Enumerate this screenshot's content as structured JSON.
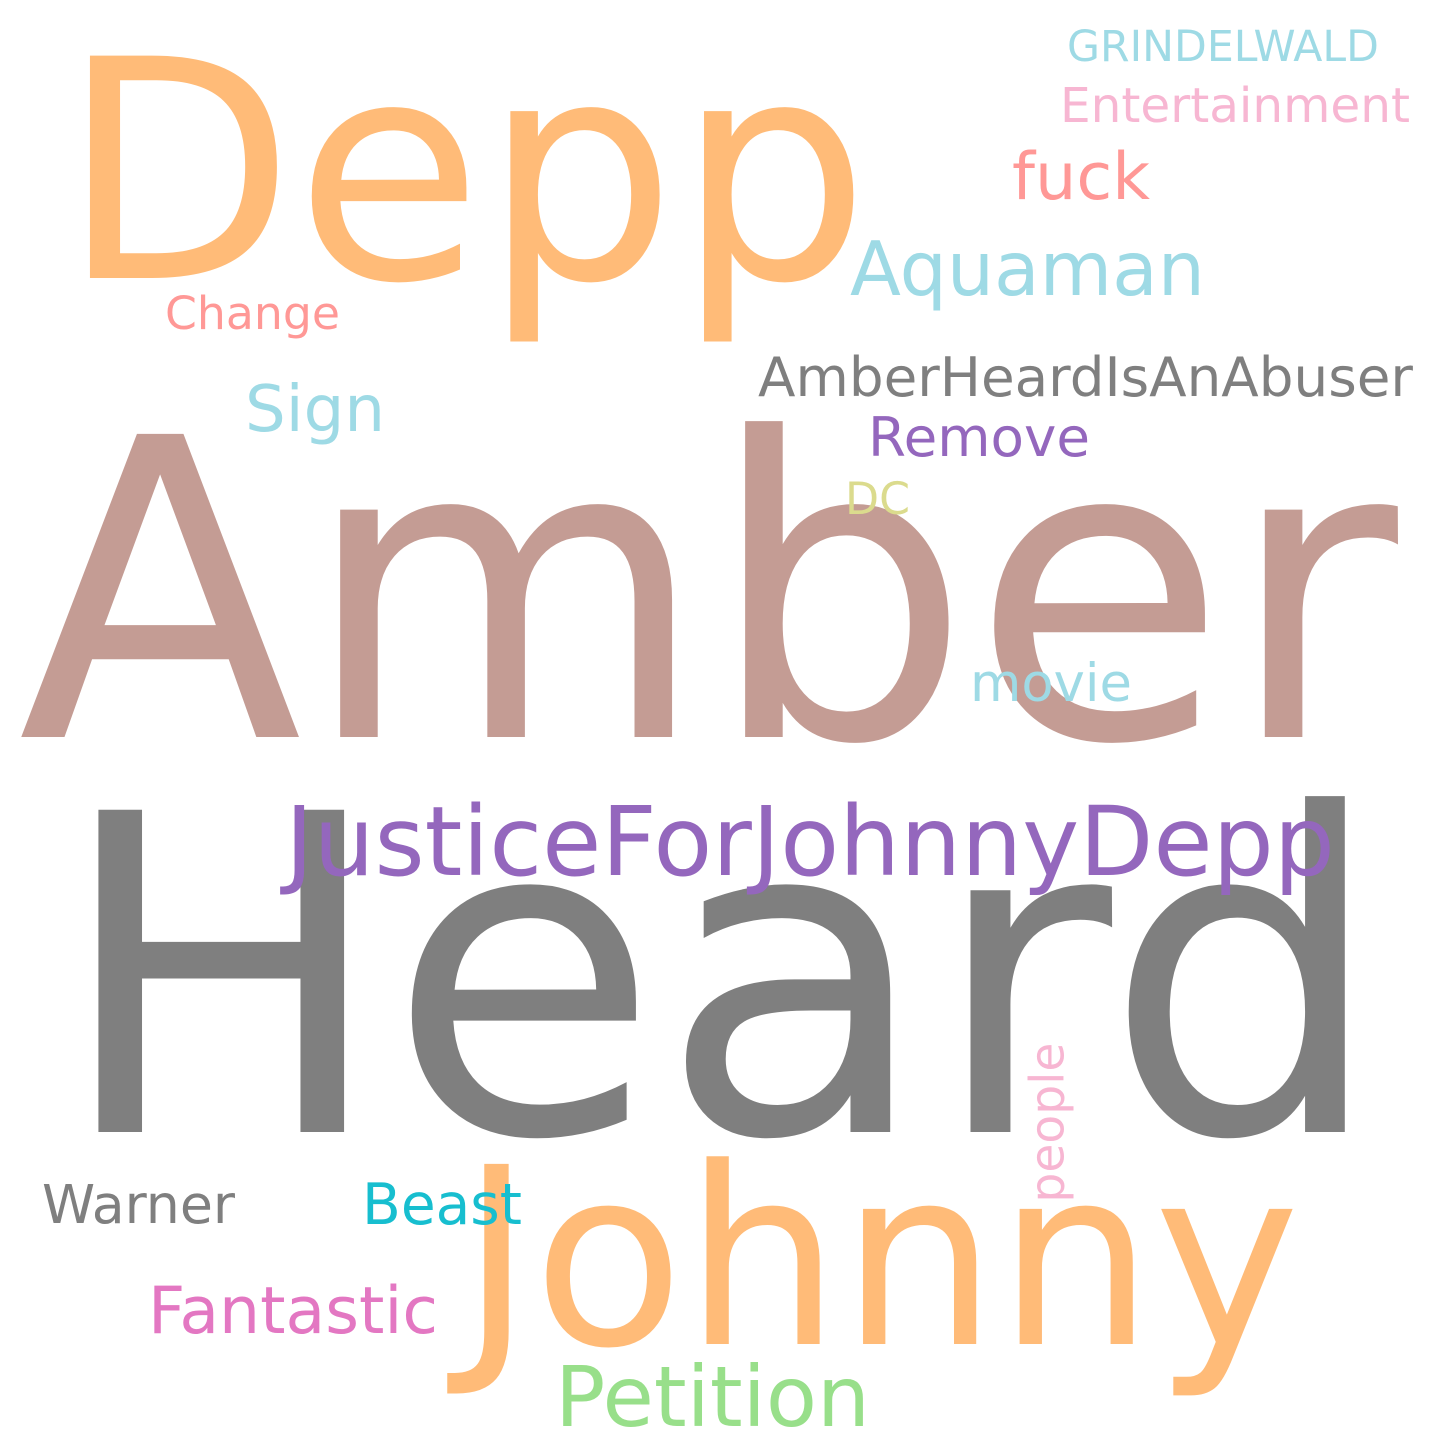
{
  "words": [
    {
      "text": "Heard",
      "color": "#7f7f7f"
    },
    {
      "text": "Amber",
      "color": "#c49c94"
    },
    {
      "text": "Depp",
      "color": "#ffbb78"
    },
    {
      "text": "Johnny",
      "color": "#ffbb78"
    },
    {
      "text": "JusticeForJohnnyDepp",
      "color": "#9467bd"
    },
    {
      "text": "Aquaman",
      "color": "#9edae5"
    },
    {
      "text": "AmberHeardIsAnAbuser",
      "color": "#7f7f7f"
    },
    {
      "text": "Petition",
      "color": "#98df8a"
    },
    {
      "text": "Remove",
      "color": "#9467bd"
    },
    {
      "text": "Fantastic",
      "color": "#e377c2"
    },
    {
      "text": "Beast",
      "color": "#17becf"
    },
    {
      "text": "Warner",
      "color": "#7f7f7f"
    },
    {
      "text": "Sign",
      "color": "#9edae5"
    },
    {
      "text": "fuck",
      "color": "#ff9896"
    },
    {
      "text": "movie",
      "color": "#9edae5"
    },
    {
      "text": "Change",
      "color": "#ff9896"
    },
    {
      "text": "DC",
      "color": "#dbdb8d"
    },
    {
      "text": "GRINDELWALD",
      "color": "#9edae5"
    },
    {
      "text": "Entertainment",
      "color": "#f7b6d2"
    },
    {
      "text": "people",
      "color": "#f7b6d2"
    }
  ]
}
